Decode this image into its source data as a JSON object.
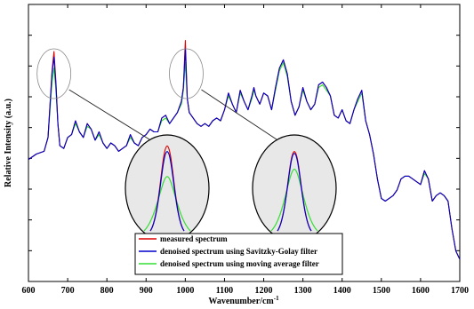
{
  "chart_data": {
    "type": "line",
    "title": "",
    "xlabel": "Wavenumber/cm",
    "xlabel_superscript": "-1",
    "ylabel": "Relative Intensity (a.u.)",
    "xlim": [
      600,
      1700
    ],
    "ylim": [
      0,
      10
    ],
    "x_ticks": [
      600,
      700,
      800,
      900,
      1000,
      1100,
      1200,
      1300,
      1400,
      1500,
      1600,
      1700
    ],
    "y_tick_labels": "none",
    "grid": false,
    "legend_placement": "bottom-center",
    "series": [
      {
        "name": "measured spectrum",
        "color": "#e00000",
        "x": [
          600,
          620,
          640,
          650,
          660,
          665,
          670,
          675,
          680,
          690,
          700,
          710,
          720,
          730,
          740,
          750,
          760,
          770,
          780,
          790,
          800,
          810,
          820,
          830,
          840,
          850,
          860,
          870,
          880,
          890,
          900,
          910,
          920,
          930,
          940,
          950,
          960,
          970,
          980,
          990,
          995,
          1000,
          1005,
          1010,
          1020,
          1030,
          1040,
          1050,
          1060,
          1070,
          1080,
          1090,
          1100,
          1110,
          1120,
          1130,
          1140,
          1150,
          1160,
          1170,
          1175,
          1180,
          1190,
          1200,
          1210,
          1220,
          1230,
          1240,
          1250,
          1260,
          1270,
          1280,
          1290,
          1300,
          1310,
          1320,
          1330,
          1340,
          1350,
          1360,
          1370,
          1380,
          1390,
          1400,
          1410,
          1420,
          1430,
          1440,
          1450,
          1460,
          1470,
          1480,
          1490,
          1500,
          1510,
          1520,
          1530,
          1540,
          1550,
          1560,
          1570,
          1580,
          1590,
          1600,
          1610,
          1620,
          1630,
          1640,
          1650,
          1660,
          1670,
          1680,
          1690,
          1700
        ],
        "y": [
          4.4,
          4.6,
          4.7,
          5.2,
          7.6,
          8.3,
          7.2,
          5.7,
          4.9,
          4.8,
          5.2,
          5.3,
          5.8,
          5.4,
          5.2,
          5.7,
          5.5,
          5.1,
          5.4,
          5.0,
          4.8,
          5.0,
          4.9,
          4.7,
          4.8,
          4.9,
          5.3,
          5.0,
          4.9,
          5.2,
          5.3,
          5.5,
          5.4,
          5.4,
          5.9,
          6.0,
          5.7,
          5.9,
          6.1,
          6.5,
          7.0,
          8.7,
          6.6,
          6.1,
          5.9,
          5.7,
          5.6,
          5.7,
          5.6,
          5.8,
          5.9,
          5.8,
          6.2,
          6.8,
          6.4,
          6.1,
          6.9,
          6.5,
          6.2,
          6.7,
          7.0,
          6.7,
          6.4,
          6.8,
          6.7,
          6.2,
          7.0,
          7.7,
          8.0,
          7.5,
          6.5,
          6.0,
          6.3,
          7.0,
          6.5,
          6.2,
          6.4,
          7.1,
          7.2,
          7.0,
          6.7,
          6.0,
          5.9,
          6.2,
          5.8,
          5.7,
          6.2,
          6.6,
          6.9,
          5.8,
          5.3,
          4.6,
          3.7,
          3.0,
          2.9,
          3.0,
          3.1,
          3.3,
          3.7,
          3.8,
          3.8,
          3.7,
          3.6,
          3.5,
          4.0,
          3.7,
          2.9,
          3.1,
          3.2,
          3.1,
          2.9,
          1.9,
          1.1,
          0.8
        ]
      },
      {
        "name": "denoised spectrum using Savitzky-Golay filter",
        "color": "#0000cc",
        "x": [
          600,
          620,
          640,
          650,
          660,
          665,
          670,
          675,
          680,
          690,
          700,
          710,
          720,
          730,
          740,
          750,
          760,
          770,
          780,
          790,
          800,
          810,
          820,
          830,
          840,
          850,
          860,
          870,
          880,
          890,
          900,
          910,
          920,
          930,
          940,
          950,
          960,
          970,
          980,
          990,
          995,
          1000,
          1005,
          1010,
          1020,
          1030,
          1040,
          1050,
          1060,
          1070,
          1080,
          1090,
          1100,
          1110,
          1120,
          1130,
          1140,
          1150,
          1160,
          1170,
          1175,
          1180,
          1190,
          1200,
          1210,
          1220,
          1230,
          1240,
          1250,
          1260,
          1270,
          1280,
          1290,
          1300,
          1310,
          1320,
          1330,
          1340,
          1350,
          1360,
          1370,
          1380,
          1390,
          1400,
          1410,
          1420,
          1430,
          1440,
          1450,
          1460,
          1470,
          1480,
          1490,
          1500,
          1510,
          1520,
          1530,
          1540,
          1550,
          1560,
          1570,
          1580,
          1590,
          1600,
          1610,
          1620,
          1630,
          1640,
          1650,
          1660,
          1670,
          1680,
          1690,
          1700
        ],
        "y": [
          4.4,
          4.6,
          4.7,
          5.2,
          7.5,
          8.1,
          7.1,
          5.7,
          4.9,
          4.8,
          5.2,
          5.3,
          5.8,
          5.4,
          5.2,
          5.7,
          5.5,
          5.1,
          5.4,
          5.0,
          4.8,
          5.0,
          4.9,
          4.7,
          4.8,
          4.9,
          5.3,
          5.0,
          4.9,
          5.2,
          5.3,
          5.5,
          5.4,
          5.4,
          5.9,
          6.0,
          5.7,
          5.9,
          6.1,
          6.5,
          7.0,
          8.4,
          6.6,
          6.1,
          5.9,
          5.7,
          5.6,
          5.7,
          5.6,
          5.8,
          5.9,
          5.8,
          6.2,
          6.8,
          6.4,
          6.1,
          6.9,
          6.5,
          6.2,
          6.7,
          7.0,
          6.7,
          6.4,
          6.8,
          6.7,
          6.2,
          7.0,
          7.7,
          8.0,
          7.5,
          6.5,
          6.0,
          6.3,
          7.0,
          6.5,
          6.2,
          6.4,
          7.1,
          7.2,
          7.0,
          6.7,
          6.0,
          5.9,
          6.2,
          5.8,
          5.7,
          6.2,
          6.6,
          6.9,
          5.8,
          5.3,
          4.6,
          3.7,
          3.0,
          2.9,
          3.0,
          3.1,
          3.3,
          3.7,
          3.8,
          3.8,
          3.7,
          3.6,
          3.5,
          4.0,
          3.7,
          2.9,
          3.1,
          3.2,
          3.1,
          2.9,
          1.9,
          1.1,
          0.8
        ]
      },
      {
        "name": "denoised spectrum using moving average filter",
        "color": "#33dd33",
        "x": [
          600,
          620,
          640,
          650,
          660,
          665,
          670,
          675,
          680,
          690,
          700,
          710,
          720,
          730,
          740,
          750,
          760,
          770,
          780,
          790,
          800,
          810,
          820,
          830,
          840,
          850,
          860,
          870,
          880,
          890,
          900,
          910,
          920,
          930,
          940,
          950,
          960,
          970,
          980,
          990,
          995,
          1000,
          1005,
          1010,
          1020,
          1030,
          1040,
          1050,
          1060,
          1070,
          1080,
          1090,
          1100,
          1110,
          1120,
          1130,
          1140,
          1150,
          1160,
          1170,
          1175,
          1180,
          1190,
          1200,
          1210,
          1220,
          1230,
          1240,
          1250,
          1260,
          1270,
          1280,
          1290,
          1300,
          1310,
          1320,
          1330,
          1340,
          1350,
          1360,
          1370,
          1380,
          1390,
          1400,
          1410,
          1420,
          1430,
          1440,
          1450,
          1460,
          1470,
          1480,
          1490,
          1500,
          1510,
          1520,
          1530,
          1540,
          1550,
          1560,
          1570,
          1580,
          1590,
          1600,
          1610,
          1620,
          1630,
          1640,
          1650,
          1660,
          1670,
          1680,
          1690,
          1700
        ],
        "y": [
          4.4,
          4.6,
          4.7,
          5.2,
          7.2,
          7.7,
          6.9,
          5.7,
          4.9,
          4.8,
          5.2,
          5.3,
          5.7,
          5.4,
          5.2,
          5.6,
          5.5,
          5.1,
          5.3,
          5.0,
          4.8,
          5.0,
          4.9,
          4.7,
          4.8,
          4.9,
          5.2,
          5.0,
          4.9,
          5.2,
          5.3,
          5.5,
          5.4,
          5.4,
          5.8,
          5.9,
          5.7,
          5.9,
          6.1,
          6.4,
          6.9,
          7.9,
          6.6,
          6.1,
          5.9,
          5.7,
          5.6,
          5.7,
          5.6,
          5.8,
          5.9,
          5.8,
          6.2,
          6.7,
          6.4,
          6.1,
          6.8,
          6.5,
          6.2,
          6.6,
          6.9,
          6.7,
          6.4,
          6.8,
          6.7,
          6.2,
          6.9,
          7.6,
          7.9,
          7.4,
          6.5,
          6.0,
          6.3,
          6.9,
          6.5,
          6.2,
          6.4,
          7.0,
          7.1,
          6.9,
          6.7,
          6.0,
          5.9,
          6.2,
          5.8,
          5.7,
          6.2,
          6.5,
          6.8,
          5.8,
          5.3,
          4.6,
          3.7,
          3.0,
          2.9,
          3.0,
          3.1,
          3.3,
          3.7,
          3.8,
          3.8,
          3.7,
          3.6,
          3.5,
          3.9,
          3.7,
          2.9,
          3.1,
          3.2,
          3.1,
          2.9,
          1.9,
          1.1,
          0.8
        ]
      }
    ],
    "zoom_insets": [
      {
        "region_x": [
          650,
          680
        ],
        "peak_heights": {
          "measured spectrum": 0.88,
          "denoised spectrum using Savitzky-Golay filter": 0.82,
          "denoised spectrum using moving average filter": 0.55
        }
      },
      {
        "region_x": [
          990,
          1015
        ],
        "peak_heights": {
          "measured spectrum": 0.82,
          "denoised spectrum using Savitzky-Golay filter": 0.8,
          "denoised spectrum using moving average filter": 0.63
        }
      }
    ]
  }
}
